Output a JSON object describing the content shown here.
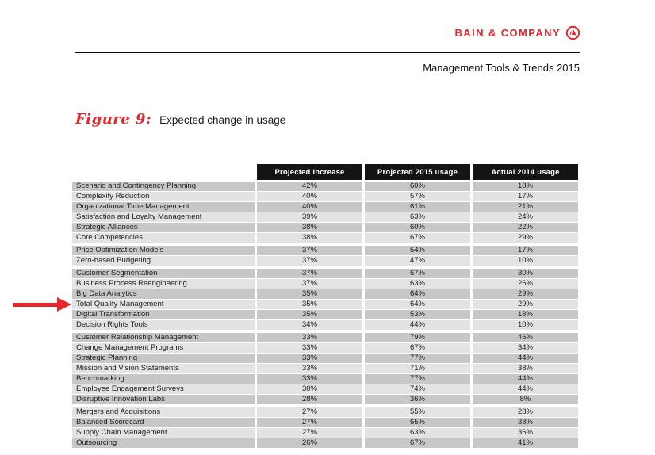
{
  "header": {
    "brand": "BAIN & COMPANY",
    "logo_icon": "bain-compass-icon",
    "subtitle": "Management Tools & Trends 2015"
  },
  "figure": {
    "label": "Figure 9:",
    "title": "Expected change in usage"
  },
  "table": {
    "columns": [
      "Projected increase",
      "Projected 2015 usage",
      "Actual 2014 usage"
    ],
    "rows": [
      {
        "tool": "Scenario and Contingency Planning",
        "values": [
          "42%",
          "60%",
          "18%"
        ]
      },
      {
        "tool": "Complexity Reduction",
        "values": [
          "40%",
          "57%",
          "17%"
        ]
      },
      {
        "tool": "Organizational Time Management",
        "values": [
          "40%",
          "61%",
          "21%"
        ]
      },
      {
        "tool": "Satisfaction and Loyalty Management",
        "values": [
          "39%",
          "63%",
          "24%"
        ]
      },
      {
        "tool": "Strategic Alliances",
        "values": [
          "38%",
          "60%",
          "22%"
        ]
      },
      {
        "tool": "Core Competencies",
        "values": [
          "38%",
          "67%",
          "29%"
        ],
        "gap_after": true
      },
      {
        "tool": "Price Optimization Models",
        "values": [
          "37%",
          "54%",
          "17%"
        ]
      },
      {
        "tool": "Zero-based Budgeting",
        "values": [
          "37%",
          "47%",
          "10%"
        ],
        "gap_after": true
      },
      {
        "tool": "Customer Segmentation",
        "values": [
          "37%",
          "67%",
          "30%"
        ]
      },
      {
        "tool": "Business Process Reengineering",
        "values": [
          "37%",
          "63%",
          "26%"
        ]
      },
      {
        "tool": "Big Data Analytics",
        "values": [
          "35%",
          "64%",
          "29%"
        ]
      },
      {
        "tool": "Total Quality Management",
        "values": [
          "35%",
          "64%",
          "29%"
        ],
        "highlighted": true
      },
      {
        "tool": "Digital Transformation",
        "values": [
          "35%",
          "53%",
          "18%"
        ]
      },
      {
        "tool": "Decision Rights Tools",
        "values": [
          "34%",
          "44%",
          "10%"
        ],
        "gap_after": true
      },
      {
        "tool": "Customer Relationship Management",
        "values": [
          "33%",
          "79%",
          "46%"
        ]
      },
      {
        "tool": "Change Management Programs",
        "values": [
          "33%",
          "67%",
          "34%"
        ]
      },
      {
        "tool": "Strategic Planning",
        "values": [
          "33%",
          "77%",
          "44%"
        ]
      },
      {
        "tool": "Mission and Vision Statements",
        "values": [
          "33%",
          "71%",
          "38%"
        ]
      },
      {
        "tool": "Benchmarking",
        "values": [
          "33%",
          "77%",
          "44%"
        ]
      },
      {
        "tool": "Employee Engagement Surveys",
        "values": [
          "30%",
          "74%",
          "44%"
        ]
      },
      {
        "tool": "Disruptive Innovation Labs",
        "values": [
          "28%",
          "36%",
          "8%"
        ],
        "gap_after": true
      },
      {
        "tool": "Mergers and Acquisitions",
        "values": [
          "27%",
          "55%",
          "28%"
        ]
      },
      {
        "tool": "Balanced Scorecard",
        "values": [
          "27%",
          "65%",
          "38%"
        ]
      },
      {
        "tool": "Supply Chain Management",
        "values": [
          "27%",
          "63%",
          "36%"
        ]
      },
      {
        "tool": "Outsourcing",
        "values": [
          "26%",
          "67%",
          "41%"
        ]
      }
    ]
  },
  "annotations": {
    "arrow_icon": "red-arrow-icon",
    "arrow_points_to": "Total Quality Management"
  },
  "colors": {
    "accent_red": "#e5272b",
    "header_bg": "#141414",
    "row_dark": "#c6c7c9",
    "row_light": "#e3e3e5"
  }
}
